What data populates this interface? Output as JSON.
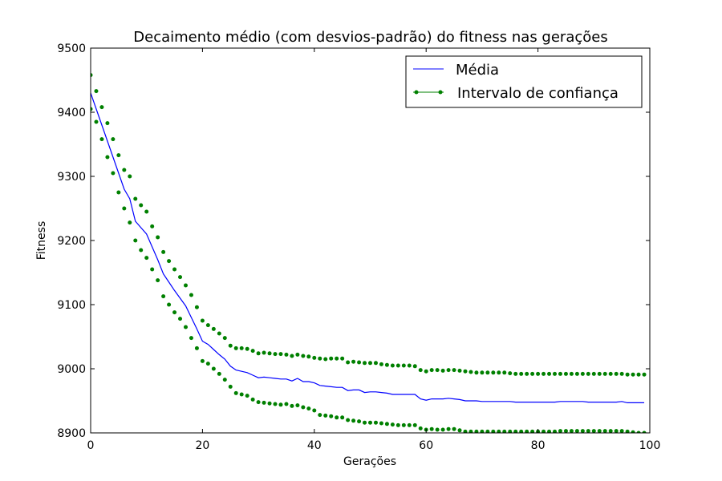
{
  "chart_data": {
    "type": "line",
    "title": "Decaimento médio (com desvios-padrão) do fitness nas gerações",
    "xlabel": "Gerações",
    "ylabel": "Fitness",
    "xlim": [
      0,
      100
    ],
    "ylim": [
      8900,
      9500
    ],
    "xticks": [
      0,
      20,
      40,
      60,
      80,
      100
    ],
    "yticks": [
      8900,
      9000,
      9100,
      9200,
      9300,
      9400,
      9500
    ],
    "grid": false,
    "legend_position": "top-right",
    "series": [
      {
        "name": "Média",
        "color": "#0000ff",
        "style": "line",
        "values": [
          9430,
          9405,
          9380,
          9355,
          9330,
          9305,
          9280,
          9265,
          9230,
          9220,
          9210,
          9190,
          9170,
          9148,
          9135,
          9122,
          9110,
          9098,
          9080,
          9062,
          9043,
          9038,
          9030,
          9022,
          9015,
          9004,
          8998,
          8996,
          8994,
          8990,
          8986,
          8987,
          8986,
          8985,
          8984,
          8984,
          8981,
          8985,
          8980,
          8980,
          8978,
          8974,
          8973,
          8972,
          8971,
          8971,
          8966,
          8967,
          8967,
          8963,
          8964,
          8964,
          8963,
          8962,
          8960,
          8960,
          8960,
          8960,
          8960,
          8953,
          8951,
          8953,
          8953,
          8953,
          8954,
          8953,
          8952,
          8950,
          8950,
          8950,
          8949,
          8949,
          8949,
          8949,
          8949,
          8949,
          8948,
          8948,
          8948,
          8948,
          8948,
          8948,
          8948,
          8948,
          8949,
          8949,
          8949,
          8949,
          8949,
          8948,
          8948,
          8948,
          8948,
          8948,
          8948,
          8949,
          8947,
          8947,
          8947,
          8947
        ]
      },
      {
        "name": "Intervalo de confiança",
        "color": "#008000",
        "style": "dots",
        "band": true,
        "upper": [
          9458,
          9433,
          9408,
          9383,
          9358,
          9333,
          9310,
          9300,
          9265,
          9255,
          9245,
          9222,
          9205,
          9182,
          9168,
          9155,
          9143,
          9130,
          9115,
          9096,
          9075,
          9068,
          9062,
          9055,
          9048,
          9036,
          9032,
          9032,
          9031,
          9028,
          9024,
          9025,
          9024,
          9023,
          9023,
          9022,
          9020,
          9022,
          9020,
          9019,
          9017,
          9016,
          9015,
          9016,
          9016,
          9016,
          9010,
          9011,
          9010,
          9009,
          9009,
          9009,
          9007,
          9006,
          9005,
          9005,
          9005,
          9005,
          9004,
          8998,
          8996,
          8998,
          8998,
          8997,
          8998,
          8998,
          8997,
          8996,
          8995,
          8994,
          8994,
          8994,
          8994,
          8994,
          8994,
          8993,
          8992,
          8992,
          8992,
          8992,
          8992,
          8992,
          8992,
          8992,
          8992,
          8992,
          8992,
          8992,
          8992,
          8992,
          8992,
          8992,
          8992,
          8992,
          8992,
          8992,
          8991,
          8991,
          8991,
          8991
        ],
        "lower": [
          9405,
          9385,
          9358,
          9330,
          9305,
          9275,
          9250,
          9228,
          9200,
          9185,
          9173,
          9155,
          9138,
          9113,
          9100,
          9088,
          9078,
          9065,
          9048,
          9032,
          9012,
          9008,
          9000,
          8992,
          8983,
          8972,
          8962,
          8960,
          8958,
          8952,
          8948,
          8947,
          8946,
          8945,
          8944,
          8945,
          8942,
          8943,
          8940,
          8938,
          8935,
          8928,
          8927,
          8926,
          8924,
          8924,
          8920,
          8919,
          8918,
          8916,
          8916,
          8916,
          8915,
          8914,
          8913,
          8912,
          8912,
          8912,
          8912,
          8907,
          8905,
          8906,
          8905,
          8905,
          8906,
          8906,
          8904,
          8902,
          8902,
          8902,
          8902,
          8902,
          8902,
          8902,
          8902,
          8902,
          8902,
          8902,
          8902,
          8902,
          8902,
          8902,
          8902,
          8902,
          8903,
          8903,
          8903,
          8903,
          8903,
          8903,
          8903,
          8903,
          8903,
          8903,
          8903,
          8903,
          8902,
          8901,
          8900,
          8900
        ]
      }
    ]
  }
}
